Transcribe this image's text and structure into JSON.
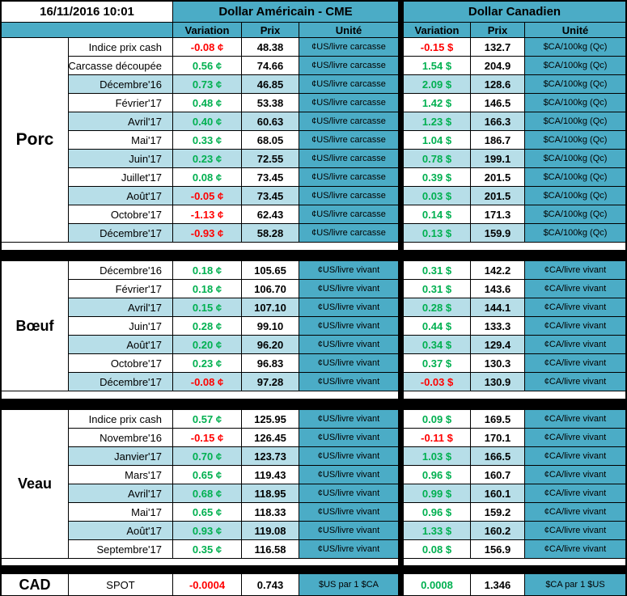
{
  "header": {
    "datetime": "16/11/2016 10:01",
    "us_title": "Dollar Américain - CME",
    "ca_title": "Dollar Canadien",
    "subheaders": [
      "Variation",
      "Prix",
      "Unité"
    ]
  },
  "colors": {
    "teal": "#4bacc6",
    "band_blue": "#b7dee8",
    "positive_green": "#00b050",
    "negative_red": "#ff0000",
    "grid_black": "#000000",
    "cell_white": "#ffffff"
  },
  "sections": [
    {
      "name": "Porc",
      "us_unit": "¢US/livre carcasse",
      "ca_unit": "$CA/100kg (Qc)",
      "rows": [
        {
          "label": "Indice prix cash",
          "us_var": "-0.08 ¢",
          "us_prix": "48.38",
          "ca_var": "-0.15 $",
          "ca_prix": "132.7"
        },
        {
          "label": "Carcasse découpée",
          "us_var": "0.56 ¢",
          "us_prix": "74.66",
          "ca_var": "1.54 $",
          "ca_prix": "204.9"
        },
        {
          "label": "Décembre'16",
          "us_var": "0.73 ¢",
          "us_prix": "46.85",
          "ca_var": "2.09 $",
          "ca_prix": "128.6"
        },
        {
          "label": "Février'17",
          "us_var": "0.48 ¢",
          "us_prix": "53.38",
          "ca_var": "1.42 $",
          "ca_prix": "146.5"
        },
        {
          "label": "Avril'17",
          "us_var": "0.40 ¢",
          "us_prix": "60.63",
          "ca_var": "1.23 $",
          "ca_prix": "166.3"
        },
        {
          "label": "Mai'17",
          "us_var": "0.33 ¢",
          "us_prix": "68.05",
          "ca_var": "1.04 $",
          "ca_prix": "186.7"
        },
        {
          "label": "Juin'17",
          "us_var": "0.23 ¢",
          "us_prix": "72.55",
          "ca_var": "0.78 $",
          "ca_prix": "199.1"
        },
        {
          "label": "Juillet'17",
          "us_var": "0.08 ¢",
          "us_prix": "73.45",
          "ca_var": "0.39 $",
          "ca_prix": "201.5"
        },
        {
          "label": "Août'17",
          "us_var": "-0.05 ¢",
          "us_prix": "73.45",
          "ca_var": "0.03 $",
          "ca_prix": "201.5"
        },
        {
          "label": "Octobre'17",
          "us_var": "-1.13 ¢",
          "us_prix": "62.43",
          "ca_var": "0.14 $",
          "ca_prix": "171.3"
        },
        {
          "label": "Décembre'17",
          "us_var": "-0.93 ¢",
          "us_prix": "58.28",
          "ca_var": "0.13 $",
          "ca_prix": "159.9"
        }
      ]
    },
    {
      "name": "Bœuf",
      "us_unit": "¢US/livre vivant",
      "ca_unit": "¢CA/livre vivant",
      "rows": [
        {
          "label": "Décembre'16",
          "us_var": "0.18 ¢",
          "us_prix": "105.65",
          "ca_var": "0.31 $",
          "ca_prix": "142.2"
        },
        {
          "label": "Février'17",
          "us_var": "0.18 ¢",
          "us_prix": "106.70",
          "ca_var": "0.31 $",
          "ca_prix": "143.6"
        },
        {
          "label": "Avril'17",
          "us_var": "0.15 ¢",
          "us_prix": "107.10",
          "ca_var": "0.28 $",
          "ca_prix": "144.1"
        },
        {
          "label": "Juin'17",
          "us_var": "0.28 ¢",
          "us_prix": "99.10",
          "ca_var": "0.44 $",
          "ca_prix": "133.3"
        },
        {
          "label": "Août'17",
          "us_var": "0.20 ¢",
          "us_prix": "96.20",
          "ca_var": "0.34 $",
          "ca_prix": "129.4"
        },
        {
          "label": "Octobre'17",
          "us_var": "0.23 ¢",
          "us_prix": "96.83",
          "ca_var": "0.37 $",
          "ca_prix": "130.3"
        },
        {
          "label": "Décembre'17",
          "us_var": "-0.08 ¢",
          "us_prix": "97.28",
          "ca_var": "-0.03 $",
          "ca_prix": "130.9"
        }
      ]
    },
    {
      "name": "Veau",
      "us_unit": "¢US/livre vivant",
      "ca_unit": "¢CA/livre vivant",
      "rows": [
        {
          "label": "Indice prix cash",
          "us_var": "0.57 ¢",
          "us_prix": "125.95",
          "ca_var": "0.09 $",
          "ca_prix": "169.5"
        },
        {
          "label": "Novembre'16",
          "us_var": "-0.15 ¢",
          "us_prix": "126.45",
          "ca_var": "-0.11 $",
          "ca_prix": "170.1"
        },
        {
          "label": "Janvier'17",
          "us_var": "0.70 ¢",
          "us_prix": "123.73",
          "ca_var": "1.03 $",
          "ca_prix": "166.5"
        },
        {
          "label": "Mars'17",
          "us_var": "0.65 ¢",
          "us_prix": "119.43",
          "ca_var": "0.96 $",
          "ca_prix": "160.7"
        },
        {
          "label": "Avril'17",
          "us_var": "0.68 ¢",
          "us_prix": "118.95",
          "ca_var": "0.99 $",
          "ca_prix": "160.1"
        },
        {
          "label": "Mai'17",
          "us_var": "0.65 ¢",
          "us_prix": "118.33",
          "ca_var": "0.96 $",
          "ca_prix": "159.2"
        },
        {
          "label": "Août'17",
          "us_var": "0.93 ¢",
          "us_prix": "119.08",
          "ca_var": "1.33 $",
          "ca_prix": "160.2"
        },
        {
          "label": "Septembre'17",
          "us_var": "0.35 ¢",
          "us_prix": "116.58",
          "ca_var": "0.08 $",
          "ca_prix": "156.9"
        }
      ]
    },
    {
      "name": "CAD",
      "us_unit": "$US par 1 $CA",
      "ca_unit": "$CA par 1 $US",
      "center_labels": true,
      "rows": [
        {
          "label": "SPOT",
          "us_var": "-0.0004",
          "us_prix": "0.743",
          "ca_var": "0.0008",
          "ca_prix": "1.346"
        }
      ]
    }
  ]
}
